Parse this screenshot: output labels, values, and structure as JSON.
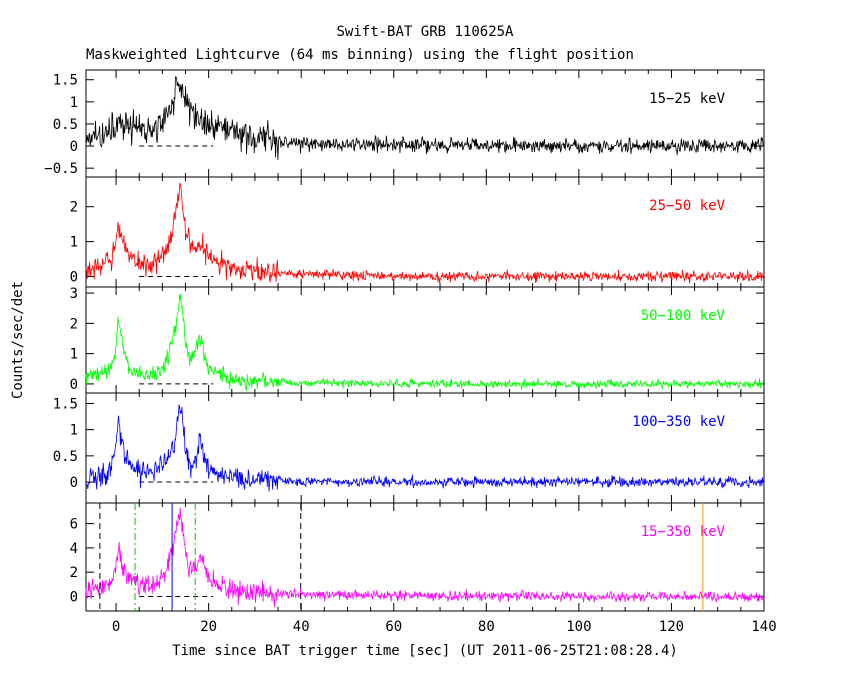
{
  "chart_data": {
    "type": "line",
    "title": "Swift-BAT GRB 110625A",
    "subtitle": "Maskweighted Lightcurve (64 ms binning) using the flight position",
    "xlabel": "Time since BAT trigger time [sec] (UT 2011-06-25T21:08:28.4)",
    "ylabel": "Counts/sec/det",
    "xlim": [
      -6.5,
      140
    ],
    "x_ticks": [
      0,
      20,
      40,
      60,
      80,
      100,
      120,
      140
    ],
    "x_tick_labels": [
      "0",
      "20",
      "40",
      "60",
      "80",
      "100",
      "120",
      "140"
    ],
    "panels": [
      {
        "name": "15-25 keV",
        "label": "15−25 keV",
        "color": "#000000",
        "ylim": [
          -0.7,
          1.72
        ],
        "y_ticks": [
          -0.5,
          0,
          0.5,
          1,
          1.5
        ],
        "y_tick_labels": [
          "−0.5",
          "0",
          "0.5",
          "1",
          "1.5"
        ],
        "envelope": {
          "time": [
            -6.5,
            -5,
            -3,
            -1,
            0,
            1,
            2,
            3,
            5,
            7,
            9,
            10,
            11,
            12,
            13,
            14,
            15,
            16,
            17,
            18,
            19,
            20,
            22,
            25,
            28,
            32,
            36,
            40,
            45,
            50,
            60,
            80,
            100,
            120,
            140
          ],
          "counts": [
            0.2,
            0.25,
            0.3,
            0.35,
            0.5,
            0.55,
            0.5,
            0.45,
            0.4,
            0.35,
            0.4,
            0.55,
            0.75,
            1.0,
            1.2,
            1.35,
            1.1,
            0.85,
            0.7,
            0.6,
            0.55,
            0.5,
            0.4,
            0.3,
            0.22,
            0.15,
            0.1,
            0.07,
            0.05,
            0.04,
            0.02,
            0.01,
            0.0,
            0.0,
            0.0
          ]
        },
        "noise": 0.18
      },
      {
        "name": "25-50 keV",
        "label": "25−50 keV",
        "color": "#ff0000",
        "ylim": [
          -0.3,
          2.85
        ],
        "y_ticks": [
          0,
          1,
          2
        ],
        "y_tick_labels": [
          "0",
          "1",
          "2"
        ],
        "envelope": {
          "time": [
            -6.5,
            -5,
            -3,
            -2,
            -1,
            0,
            0.5,
            1,
            2,
            3,
            5,
            7,
            9,
            10,
            11,
            12,
            13,
            13.5,
            14,
            14.5,
            15,
            16,
            17,
            18,
            19,
            20,
            22,
            25,
            28,
            32,
            36,
            40,
            50,
            60,
            80,
            100,
            120,
            140
          ],
          "counts": [
            0.15,
            0.2,
            0.3,
            0.4,
            0.5,
            1.0,
            1.5,
            1.2,
            0.8,
            0.6,
            0.45,
            0.35,
            0.4,
            0.6,
            0.9,
            1.3,
            1.9,
            2.4,
            2.6,
            2.0,
            1.4,
            1.0,
            0.9,
            1.0,
            0.8,
            0.6,
            0.4,
            0.25,
            0.15,
            0.1,
            0.08,
            0.06,
            0.04,
            0.02,
            0.01,
            0.0,
            0.0,
            0.0
          ]
        },
        "noise": 0.16
      },
      {
        "name": "50-100 keV",
        "label": "50−100 keV",
        "color": "#00ff00",
        "ylim": [
          -0.3,
          3.2
        ],
        "y_ticks": [
          0,
          1,
          2,
          3
        ],
        "y_tick_labels": [
          "0",
          "1",
          "2",
          "3"
        ],
        "envelope": {
          "time": [
            -6.5,
            -5,
            -3,
            -2,
            -1,
            0,
            0.5,
            1,
            2,
            3,
            5,
            7,
            9,
            10,
            11,
            12,
            13,
            13.5,
            14,
            14.5,
            15,
            16,
            17,
            18,
            18.5,
            19,
            20,
            22,
            25,
            28,
            32,
            36,
            40,
            50,
            60,
            80,
            100,
            120,
            140
          ],
          "counts": [
            0.2,
            0.3,
            0.4,
            0.5,
            0.6,
            1.2,
            2.2,
            1.6,
            0.9,
            0.5,
            0.35,
            0.3,
            0.35,
            0.5,
            0.8,
            1.3,
            2.0,
            2.6,
            2.9,
            2.2,
            1.4,
            0.8,
            0.9,
            1.5,
            1.6,
            0.9,
            0.5,
            0.3,
            0.18,
            0.1,
            0.06,
            0.05,
            0.04,
            0.02,
            0.01,
            0.0,
            0.0,
            0.0,
            0.0
          ]
        },
        "noise": 0.14
      },
      {
        "name": "100-350 keV",
        "label": "100−350 keV",
        "color": "#0000ff",
        "ylim": [
          -0.4,
          1.7
        ],
        "y_ticks": [
          0,
          0.5,
          1,
          1.5
        ],
        "y_tick_labels": [
          "0",
          "0.5",
          "1",
          "1.5"
        ],
        "envelope": {
          "time": [
            -6.5,
            -5,
            -3,
            -2,
            -1,
            0,
            0.5,
            1,
            2,
            3,
            5,
            7,
            9,
            10,
            11,
            12,
            13,
            13.5,
            14,
            14.5,
            15,
            16,
            17,
            18,
            18.5,
            19,
            20,
            22,
            25,
            28,
            32,
            36,
            40,
            50,
            60,
            80,
            100,
            120,
            140
          ],
          "counts": [
            0.1,
            0.12,
            0.15,
            0.2,
            0.25,
            0.6,
            1.3,
            0.9,
            0.5,
            0.3,
            0.2,
            0.2,
            0.25,
            0.3,
            0.4,
            0.6,
            0.9,
            1.3,
            1.4,
            1.0,
            0.6,
            0.35,
            0.4,
            0.7,
            0.8,
            0.5,
            0.3,
            0.15,
            0.08,
            0.05,
            0.03,
            0.02,
            0.01,
            0.01,
            0.0,
            0.0,
            0.0,
            0.0,
            0.0
          ]
        },
        "noise": 0.11
      },
      {
        "name": "15-350 keV",
        "label": "15−350 keV",
        "color": "#ff00ff",
        "ylim": [
          -1.2,
          7.7
        ],
        "y_ticks": [
          0,
          2,
          4,
          6
        ],
        "y_tick_labels": [
          "0",
          "2",
          "4",
          "6"
        ],
        "envelope": {
          "time": [
            -6.5,
            -5,
            -3,
            -2,
            -1,
            0,
            0.5,
            1,
            2,
            3,
            5,
            7,
            9,
            10,
            11,
            12,
            13,
            13.5,
            14,
            14.5,
            15,
            16,
            17,
            18,
            18.5,
            19,
            20,
            22,
            25,
            28,
            32,
            36,
            40,
            50,
            60,
            80,
            100,
            120,
            140
          ],
          "counts": [
            0.5,
            0.6,
            0.8,
            1.0,
            1.2,
            2.6,
            4.0,
            3.0,
            1.8,
            1.3,
            1.0,
            0.9,
            1.1,
            1.6,
            2.4,
            3.6,
            5.2,
            6.5,
            7.0,
            5.5,
            3.6,
            2.2,
            2.2,
            3.2,
            3.4,
            2.4,
            1.6,
            1.0,
            0.6,
            0.35,
            0.25,
            0.2,
            0.15,
            0.1,
            0.05,
            0.02,
            0.0,
            0.0,
            0.0
          ]
        },
        "noise": 0.45
      }
    ],
    "markers": [
      {
        "x": -3.5,
        "color": "#000000",
        "style": "dashed"
      },
      {
        "x": 4.1,
        "color": "#00cc00",
        "style": "dashdot"
      },
      {
        "x": 12.1,
        "color": "#0000ff",
        "style": "solid"
      },
      {
        "x": 17.1,
        "color": "#00cc00",
        "style": "dashdot"
      },
      {
        "x": 39.9,
        "color": "#000000",
        "style": "dashed"
      },
      {
        "x": 126.8,
        "color": "#ff9900",
        "style": "solid"
      }
    ]
  }
}
